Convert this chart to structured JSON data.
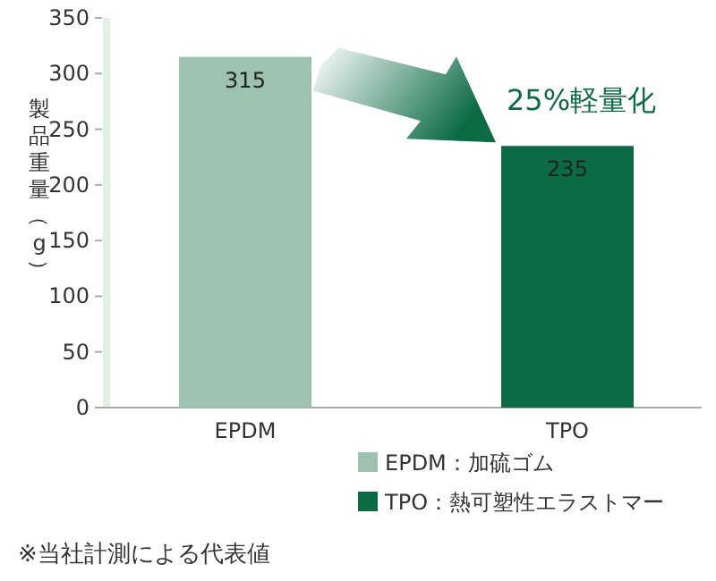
{
  "chart_data": {
    "type": "bar",
    "categories": [
      "EPDM",
      "TPO"
    ],
    "ylabel": "製品重量（g）",
    "series": [
      {
        "name": "EPDM：加硫ゴム",
        "color": "#9dc3b0",
        "values": [
          315,
          null
        ]
      },
      {
        "name": "TPO：熱可塑性エラストマー",
        "color": "#0b6b45",
        "values": [
          null,
          235
        ]
      }
    ],
    "ylim": [
      0,
      350
    ],
    "yticks": [
      0,
      50,
      100,
      150,
      200,
      250,
      300,
      350
    ],
    "data_labels": true,
    "legend": "bottom",
    "grid": false,
    "annotations": [
      "25%軽量化",
      "※当社計測による代表値"
    ]
  }
}
